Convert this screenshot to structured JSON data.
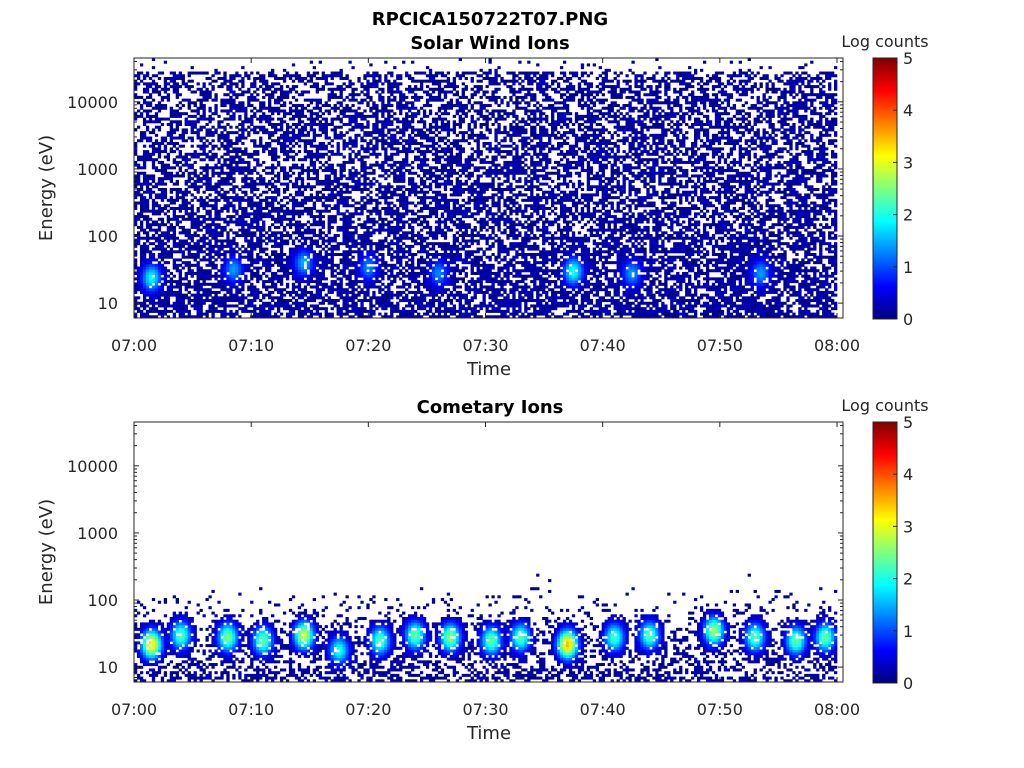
{
  "figure_title": "RPCICA150722T07.PNG",
  "colormap": {
    "name": "jet",
    "stops": [
      "#00007f",
      "#0000ff",
      "#007fff",
      "#00ffff",
      "#7fff7f",
      "#ffff00",
      "#ff7f00",
      "#ff0000",
      "#7f0000"
    ]
  },
  "chart_data": [
    {
      "type": "heatmap",
      "title": "Solar Wind Ions",
      "xlabel": "Time",
      "ylabel": "Energy (eV)",
      "x_ticks": [
        "07:00",
        "07:10",
        "07:20",
        "07:30",
        "07:40",
        "07:50",
        "08:00"
      ],
      "x_range": [
        "07:00",
        "08:00"
      ],
      "y_scale": "log",
      "y_ticks": [
        "10",
        "100",
        "1000",
        "10000"
      ],
      "y_range": [
        6,
        45000
      ],
      "colorbar": {
        "label": "Log counts",
        "ticks": [
          "0",
          "1",
          "2",
          "3",
          "4",
          "5"
        ],
        "range": [
          0,
          5
        ]
      },
      "density": {
        "base": 0.5,
        "low_energy_boost": 0.35,
        "floor_eV": 6,
        "ceiling_eV": 28000
      },
      "intensity_events": [
        {
          "time": "07:01.5",
          "energy_eV": 24,
          "log_counts": 1.9
        },
        {
          "time": "07:08.5",
          "energy_eV": 32,
          "log_counts": 1.4
        },
        {
          "time": "07:14.5",
          "energy_eV": 40,
          "log_counts": 1.5
        },
        {
          "time": "07:20",
          "energy_eV": 34,
          "log_counts": 1.3
        },
        {
          "time": "07:26",
          "energy_eV": 28,
          "log_counts": 1.3
        },
        {
          "time": "07:37.5",
          "energy_eV": 30,
          "log_counts": 2.0
        },
        {
          "time": "07:42.5",
          "energy_eV": 28,
          "log_counts": 1.4
        },
        {
          "time": "07:53.5",
          "energy_eV": 28,
          "log_counts": 1.4
        }
      ]
    },
    {
      "type": "heatmap",
      "title": "Cometary Ions",
      "xlabel": "Time",
      "ylabel": "Energy (eV)",
      "x_ticks": [
        "07:00",
        "07:10",
        "07:20",
        "07:30",
        "07:40",
        "07:50",
        "08:00"
      ],
      "x_range": [
        "07:00",
        "08:00"
      ],
      "y_scale": "log",
      "y_ticks": [
        "10",
        "100",
        "1000",
        "10000"
      ],
      "y_range": [
        6,
        45000
      ],
      "colorbar": {
        "label": "Log counts",
        "ticks": [
          "0",
          "1",
          "2",
          "3",
          "4",
          "5"
        ],
        "range": [
          0,
          5
        ]
      },
      "density": {
        "base": 0.015,
        "low_energy_boost": 0.85,
        "floor_eV": 6,
        "ceiling_eV": 150
      },
      "intensity_events": [
        {
          "time": "07:01.5",
          "energy_eV": 22,
          "log_counts": 3.3
        },
        {
          "time": "07:04",
          "energy_eV": 30,
          "log_counts": 2.3
        },
        {
          "time": "07:08",
          "energy_eV": 28,
          "log_counts": 2.5
        },
        {
          "time": "07:11",
          "energy_eV": 25,
          "log_counts": 2.4
        },
        {
          "time": "07:14.5",
          "energy_eV": 30,
          "log_counts": 2.9
        },
        {
          "time": "07:17.5",
          "energy_eV": 18,
          "log_counts": 2.0
        },
        {
          "time": "07:21",
          "energy_eV": 25,
          "log_counts": 2.3
        },
        {
          "time": "07:24",
          "energy_eV": 30,
          "log_counts": 2.4
        },
        {
          "time": "07:27",
          "energy_eV": 28,
          "log_counts": 2.6
        },
        {
          "time": "07:30.5",
          "energy_eV": 25,
          "log_counts": 2.4
        },
        {
          "time": "07:33",
          "energy_eV": 28,
          "log_counts": 2.3
        },
        {
          "time": "07:37",
          "energy_eV": 22,
          "log_counts": 3.5
        },
        {
          "time": "07:41",
          "energy_eV": 28,
          "log_counts": 2.2
        },
        {
          "time": "07:44",
          "energy_eV": 30,
          "log_counts": 2.3
        },
        {
          "time": "07:49.5",
          "energy_eV": 35,
          "log_counts": 2.7
        },
        {
          "time": "07:53",
          "energy_eV": 28,
          "log_counts": 2.3
        },
        {
          "time": "07:56.5",
          "energy_eV": 25,
          "log_counts": 2.4
        },
        {
          "time": "07:59",
          "energy_eV": 28,
          "log_counts": 2.4
        }
      ]
    }
  ]
}
